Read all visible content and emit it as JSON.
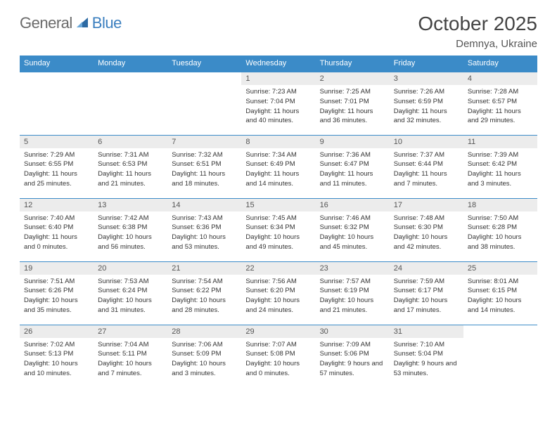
{
  "logo": {
    "left": "General",
    "right": "Blue"
  },
  "title": "October 2025",
  "location": "Demnya, Ukraine",
  "colors": {
    "header_bg": "#3b8bc8",
    "header_text": "#ffffff",
    "cell_border": "#3b8bc8",
    "daynum_bg": "#ececec",
    "page_bg": "#ffffff",
    "body_text": "#333333",
    "logo_gray": "#6a6a6a",
    "logo_blue": "#3b7fbf"
  },
  "typography": {
    "title_fontsize": 28,
    "location_fontsize": 15,
    "header_fontsize": 11,
    "daynum_fontsize": 11,
    "body_fontsize": 9.5,
    "logo_fontsize": 22
  },
  "calendar": {
    "type": "table",
    "columns": [
      "Sunday",
      "Monday",
      "Tuesday",
      "Wednesday",
      "Thursday",
      "Friday",
      "Saturday"
    ],
    "leading_blanks": 3,
    "days": [
      {
        "n": 1,
        "sunrise": "7:23 AM",
        "sunset": "7:04 PM",
        "daylight": "11 hours and 40 minutes."
      },
      {
        "n": 2,
        "sunrise": "7:25 AM",
        "sunset": "7:01 PM",
        "daylight": "11 hours and 36 minutes."
      },
      {
        "n": 3,
        "sunrise": "7:26 AM",
        "sunset": "6:59 PM",
        "daylight": "11 hours and 32 minutes."
      },
      {
        "n": 4,
        "sunrise": "7:28 AM",
        "sunset": "6:57 PM",
        "daylight": "11 hours and 29 minutes."
      },
      {
        "n": 5,
        "sunrise": "7:29 AM",
        "sunset": "6:55 PM",
        "daylight": "11 hours and 25 minutes."
      },
      {
        "n": 6,
        "sunrise": "7:31 AM",
        "sunset": "6:53 PM",
        "daylight": "11 hours and 21 minutes."
      },
      {
        "n": 7,
        "sunrise": "7:32 AM",
        "sunset": "6:51 PM",
        "daylight": "11 hours and 18 minutes."
      },
      {
        "n": 8,
        "sunrise": "7:34 AM",
        "sunset": "6:49 PM",
        "daylight": "11 hours and 14 minutes."
      },
      {
        "n": 9,
        "sunrise": "7:36 AM",
        "sunset": "6:47 PM",
        "daylight": "11 hours and 11 minutes."
      },
      {
        "n": 10,
        "sunrise": "7:37 AM",
        "sunset": "6:44 PM",
        "daylight": "11 hours and 7 minutes."
      },
      {
        "n": 11,
        "sunrise": "7:39 AM",
        "sunset": "6:42 PM",
        "daylight": "11 hours and 3 minutes."
      },
      {
        "n": 12,
        "sunrise": "7:40 AM",
        "sunset": "6:40 PM",
        "daylight": "11 hours and 0 minutes."
      },
      {
        "n": 13,
        "sunrise": "7:42 AM",
        "sunset": "6:38 PM",
        "daylight": "10 hours and 56 minutes."
      },
      {
        "n": 14,
        "sunrise": "7:43 AM",
        "sunset": "6:36 PM",
        "daylight": "10 hours and 53 minutes."
      },
      {
        "n": 15,
        "sunrise": "7:45 AM",
        "sunset": "6:34 PM",
        "daylight": "10 hours and 49 minutes."
      },
      {
        "n": 16,
        "sunrise": "7:46 AM",
        "sunset": "6:32 PM",
        "daylight": "10 hours and 45 minutes."
      },
      {
        "n": 17,
        "sunrise": "7:48 AM",
        "sunset": "6:30 PM",
        "daylight": "10 hours and 42 minutes."
      },
      {
        "n": 18,
        "sunrise": "7:50 AM",
        "sunset": "6:28 PM",
        "daylight": "10 hours and 38 minutes."
      },
      {
        "n": 19,
        "sunrise": "7:51 AM",
        "sunset": "6:26 PM",
        "daylight": "10 hours and 35 minutes."
      },
      {
        "n": 20,
        "sunrise": "7:53 AM",
        "sunset": "6:24 PM",
        "daylight": "10 hours and 31 minutes."
      },
      {
        "n": 21,
        "sunrise": "7:54 AM",
        "sunset": "6:22 PM",
        "daylight": "10 hours and 28 minutes."
      },
      {
        "n": 22,
        "sunrise": "7:56 AM",
        "sunset": "6:20 PM",
        "daylight": "10 hours and 24 minutes."
      },
      {
        "n": 23,
        "sunrise": "7:57 AM",
        "sunset": "6:19 PM",
        "daylight": "10 hours and 21 minutes."
      },
      {
        "n": 24,
        "sunrise": "7:59 AM",
        "sunset": "6:17 PM",
        "daylight": "10 hours and 17 minutes."
      },
      {
        "n": 25,
        "sunrise": "8:01 AM",
        "sunset": "6:15 PM",
        "daylight": "10 hours and 14 minutes."
      },
      {
        "n": 26,
        "sunrise": "7:02 AM",
        "sunset": "5:13 PM",
        "daylight": "10 hours and 10 minutes."
      },
      {
        "n": 27,
        "sunrise": "7:04 AM",
        "sunset": "5:11 PM",
        "daylight": "10 hours and 7 minutes."
      },
      {
        "n": 28,
        "sunrise": "7:06 AM",
        "sunset": "5:09 PM",
        "daylight": "10 hours and 3 minutes."
      },
      {
        "n": 29,
        "sunrise": "7:07 AM",
        "sunset": "5:08 PM",
        "daylight": "10 hours and 0 minutes."
      },
      {
        "n": 30,
        "sunrise": "7:09 AM",
        "sunset": "5:06 PM",
        "daylight": "9 hours and 57 minutes."
      },
      {
        "n": 31,
        "sunrise": "7:10 AM",
        "sunset": "5:04 PM",
        "daylight": "9 hours and 53 minutes."
      }
    ],
    "labels": {
      "sunrise": "Sunrise:",
      "sunset": "Sunset:",
      "daylight": "Daylight:"
    }
  }
}
